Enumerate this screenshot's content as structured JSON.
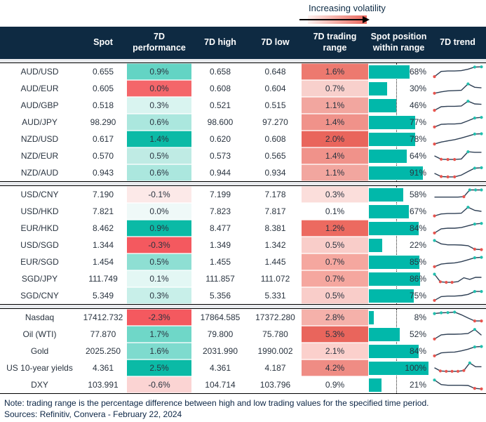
{
  "legend": {
    "label": "Increasing volatility",
    "gradient_from": "#fdf1ef",
    "gradient_mid": "#f4aba3",
    "gradient_to": "#e9655c"
  },
  "colors": {
    "teal_bar": "#01b8aa",
    "spark_line": "#2e3f54",
    "spark_high": "#22bfae",
    "spark_low": "#e8544e",
    "header_bg": "#0e2a42",
    "header_text": "#ffffff"
  },
  "chart_data": {
    "type": "table",
    "columns": [
      "",
      "Spot",
      "7D performance",
      "7D high",
      "7D low",
      "7D trading range",
      "Spot position within range",
      "7D trend"
    ],
    "position_axis": {
      "min": 0,
      "max": 100,
      "midline_pct": 46
    },
    "groups": [
      {
        "rows": [
          {
            "label": "AUD/USD",
            "spot": "0.655",
            "perf": {
              "v": "0.9%",
              "bg": "#63d4c4"
            },
            "high": "0.658",
            "low": "0.648",
            "range": {
              "v": "1.6%",
              "bg": "#ed796f"
            },
            "pos": 68,
            "spark": {
              "y": [
                0.08,
                0.52,
                0.55,
                0.55,
                0.58,
                0.7,
                0.88,
                0.9
              ],
              "red": [
                0
              ],
              "teal": [
                6,
                7
              ]
            }
          },
          {
            "label": "AUD/EUR",
            "spot": "0.605",
            "perf": {
              "v": "0.0%",
              "bg": "#f4666a"
            },
            "high": "0.608",
            "low": "0.604",
            "range": {
              "v": "0.7%",
              "bg": "#f8d0cc"
            },
            "pos": 30,
            "spark": {
              "y": [
                0.1,
                0.22,
                0.3,
                0.32,
                0.35,
                0.88,
                0.6,
                0.55
              ],
              "red": [
                0
              ],
              "teal": [
                5
              ]
            }
          },
          {
            "label": "AUD/GBP",
            "spot": "0.518",
            "perf": {
              "v": "0.3%",
              "bg": "#d9f4f0"
            },
            "high": "0.521",
            "low": "0.515",
            "range": {
              "v": "1.1%",
              "bg": "#f2a69f"
            },
            "pos": 46,
            "spark": {
              "y": [
                0.08,
                0.38,
                0.42,
                0.42,
                0.45,
                0.85,
                0.62,
                0.58
              ],
              "red": [
                0
              ],
              "teal": [
                5
              ]
            }
          },
          {
            "label": "AUD/JPY",
            "spot": "98.290",
            "perf": {
              "v": "0.6%",
              "bg": "#abe7de"
            },
            "high": "98.600",
            "low": "97.270",
            "range": {
              "v": "1.4%",
              "bg": "#f0928a"
            },
            "pos": 77,
            "spark": {
              "y": [
                0.1,
                0.32,
                0.35,
                0.35,
                0.4,
                0.62,
                0.85,
                0.9
              ],
              "red": [
                0
              ],
              "teal": [
                6,
                7
              ]
            }
          },
          {
            "label": "NZD/USD",
            "spot": "0.617",
            "perf": {
              "v": "1.4%",
              "bg": "#0bbaa6"
            },
            "high": "0.620",
            "low": "0.608",
            "range": {
              "v": "2.0%",
              "bg": "#e9655c"
            },
            "pos": 78,
            "spark": {
              "y": [
                0.08,
                0.25,
                0.35,
                0.45,
                0.58,
                0.75,
                0.92,
                0.94
              ],
              "red": [
                0
              ],
              "teal": [
                6,
                7
              ]
            }
          },
          {
            "label": "NZD/EUR",
            "spot": "0.570",
            "perf": {
              "v": "0.5%",
              "bg": "#bfebe4"
            },
            "high": "0.573",
            "low": "0.565",
            "range": {
              "v": "1.4%",
              "bg": "#f0928a"
            },
            "pos": 64,
            "spark": {
              "y": [
                0.5,
                0.22,
                0.2,
                0.2,
                0.24,
                0.85,
                0.8,
                0.8
              ],
              "red": [
                1,
                2,
                3
              ],
              "teal": [
                5
              ]
            }
          },
          {
            "label": "NZD/AUD",
            "spot": "0.943",
            "perf": {
              "v": "0.6%",
              "bg": "#abe7de"
            },
            "high": "0.944",
            "low": "0.934",
            "range": {
              "v": "1.1%",
              "bg": "#f2a69f"
            },
            "pos": 91,
            "spark": {
              "y": [
                0.45,
                0.18,
                0.15,
                0.15,
                0.3,
                0.6,
                0.88,
                0.92
              ],
              "red": [
                1,
                2,
                3
              ],
              "teal": [
                6,
                7
              ]
            }
          }
        ]
      },
      {
        "rows": [
          {
            "label": "USD/CNY",
            "spot": "7.190",
            "perf": {
              "v": "-0.1%",
              "bg": "#fce9e8"
            },
            "high": "7.199",
            "low": "7.178",
            "range": {
              "v": "0.3%",
              "bg": "#fbdedb"
            },
            "pos": 58,
            "spark": {
              "y": [
                0.28,
                0.28,
                0.28,
                0.28,
                0.28,
                0.32,
                0.88,
                0.88,
                0.88
              ],
              "red": [
                5
              ],
              "teal": [
                6,
                7,
                8
              ]
            }
          },
          {
            "label": "USD/HKD",
            "spot": "7.821",
            "perf": {
              "v": "0.0%",
              "bg": "#eff9f8"
            },
            "high": "7.823",
            "low": "7.817",
            "range": {
              "v": "0.1%",
              "bg": "#ffffff"
            },
            "pos": 67,
            "spark": {
              "y": [
                0.12,
                0.28,
                0.32,
                0.32,
                0.35,
                0.85,
                0.58,
                0.5
              ],
              "red": [
                0
              ],
              "teal": [
                5
              ]
            }
          },
          {
            "label": "EUR/HKD",
            "spot": "8.462",
            "perf": {
              "v": "0.9%",
              "bg": "#0bbaa6"
            },
            "high": "8.477",
            "low": "8.381",
            "range": {
              "v": "1.2%",
              "bg": "#ec6a60"
            },
            "pos": 84,
            "spark": {
              "y": [
                0.1,
                0.45,
                0.5,
                0.5,
                0.55,
                0.7,
                0.85,
                0.9
              ],
              "red": [
                0
              ],
              "teal": [
                6,
                7
              ]
            }
          },
          {
            "label": "USD/SGD",
            "spot": "1.344",
            "perf": {
              "v": "-0.3%",
              "bg": "#f4595f"
            },
            "high": "1.349",
            "low": "1.342",
            "range": {
              "v": "0.5%",
              "bg": "#f9cdc9"
            },
            "pos": 22,
            "spark": {
              "y": [
                0.88,
                0.6,
                0.52,
                0.52,
                0.5,
                0.45,
                0.15,
                0.12
              ],
              "red": [
                6,
                7
              ],
              "teal": [
                0
              ]
            }
          },
          {
            "label": "EUR/SGD",
            "spot": "1.454",
            "perf": {
              "v": "0.5%",
              "bg": "#8edfd3"
            },
            "high": "1.455",
            "low": "1.445",
            "range": {
              "v": "0.7%",
              "bg": "#f5a79f"
            },
            "pos": 85,
            "spark": {
              "y": [
                0.1,
                0.32,
                0.38,
                0.42,
                0.52,
                0.68,
                0.85,
                0.88
              ],
              "red": [
                0
              ],
              "teal": [
                6,
                7
              ]
            }
          },
          {
            "label": "SGD/JPY",
            "spot": "111.749",
            "perf": {
              "v": "0.1%",
              "bg": "#e3f7f4"
            },
            "high": "111.857",
            "low": "111.072",
            "range": {
              "v": "0.7%",
              "bg": "#f5a79f"
            },
            "pos": 86,
            "spark": {
              "y": [
                0.88,
                0.25,
                0.2,
                0.2,
                0.26,
                0.58,
                0.45,
                0.62,
                0.62
              ],
              "red": [
                1,
                2,
                3
              ],
              "teal": [
                0
              ]
            }
          },
          {
            "label": "SGD/CNY",
            "spot": "5.349",
            "perf": {
              "v": "0.3%",
              "bg": "#c8efe9"
            },
            "high": "5.356",
            "low": "5.331",
            "range": {
              "v": "0.5%",
              "bg": "#f9cdc9"
            },
            "pos": 75,
            "spark": {
              "y": [
                0.1,
                0.42,
                0.46,
                0.46,
                0.5,
                0.6,
                0.85,
                0.85
              ],
              "red": [
                0
              ],
              "teal": [
                6,
                7
              ]
            }
          }
        ]
      },
      {
        "rows": [
          {
            "label": "Nasdaq",
            "spot": "17412.732",
            "perf": {
              "v": "-2.3%",
              "bg": "#f4595f"
            },
            "high": "17864.585",
            "low": "17372.280",
            "range": {
              "v": "2.8%",
              "bg": "#f5b1aa"
            },
            "pos": 8,
            "spark": {
              "y": [
                0.82,
                0.88,
                0.9,
                0.94,
                0.72,
                0.45,
                0.2,
                0.2
              ],
              "red": [
                6,
                7
              ],
              "teal": [
                0,
                1,
                2,
                3
              ]
            }
          },
          {
            "label": "Oil (WTI)",
            "spot": "77.870",
            "perf": {
              "v": "1.7%",
              "bg": "#6fd7c8"
            },
            "high": "79.800",
            "low": "75.780",
            "range": {
              "v": "5.3%",
              "bg": "#e9655c"
            },
            "pos": 52,
            "spark": {
              "y": [
                0.1,
                0.45,
                0.5,
                0.5,
                0.52,
                0.56,
                0.9,
                0.42
              ],
              "red": [
                0
              ],
              "teal": [
                6
              ]
            }
          },
          {
            "label": "Gold",
            "spot": "2025.250",
            "perf": {
              "v": "1.6%",
              "bg": "#7edbce"
            },
            "high": "2031.990",
            "low": "1990.002",
            "range": {
              "v": "2.1%",
              "bg": "#fbd0cc"
            },
            "pos": 84,
            "spark": {
              "y": [
                0.1,
                0.35,
                0.4,
                0.42,
                0.52,
                0.66,
                0.85,
                0.88
              ],
              "red": [
                0
              ],
              "teal": [
                6,
                7
              ]
            }
          },
          {
            "label": "US 10-year yields",
            "spot": "4.361",
            "perf": {
              "v": "2.5%",
              "bg": "#0bbaa6"
            },
            "high": "4.361",
            "low": "4.187",
            "range": {
              "v": "4.2%",
              "bg": "#ef8c84"
            },
            "pos": 100,
            "spark": {
              "y": [
                0.52,
                0.25,
                0.22,
                0.22,
                0.22,
                0.28,
                0.92,
                0.6,
                0.6
              ],
              "red": [
                1,
                2,
                3,
                4,
                5
              ],
              "teal": [
                6
              ]
            }
          },
          {
            "label": "DXY",
            "spot": "103.991",
            "perf": {
              "v": "-0.6%",
              "bg": "#fbd4d3"
            },
            "high": "104.714",
            "low": "103.796",
            "range": {
              "v": "0.9%",
              "bg": "#ffffff"
            },
            "pos": 21,
            "spark": {
              "y": [
                0.9,
                0.52,
                0.46,
                0.46,
                0.46,
                0.44,
                0.2,
                0.15
              ],
              "red": [
                6,
                7
              ],
              "teal": [
                0
              ]
            }
          }
        ]
      }
    ]
  },
  "footer": {
    "note": "Note: trading range is the percentage difference between high and low trading values for the specified time period.",
    "sources": "Sources: Refinitiv, Convera - February 22, 2024"
  }
}
